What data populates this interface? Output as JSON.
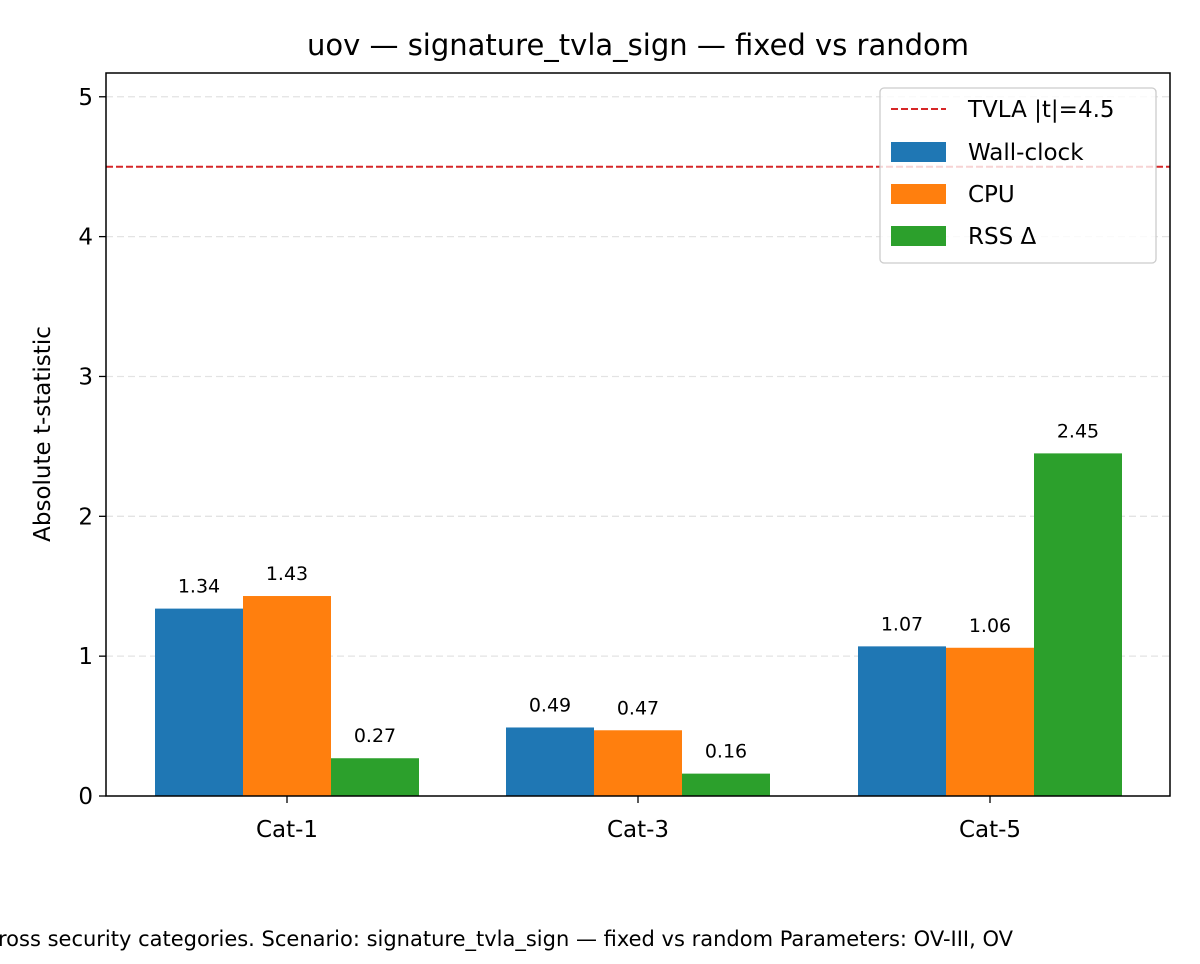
{
  "chart_data": {
    "type": "bar",
    "title": "uov — signature_tvla_sign — fixed vs random",
    "xlabel": "",
    "ylabel": "Absolute t-statistic",
    "categories": [
      "Cat-1",
      "Cat-3",
      "Cat-5"
    ],
    "series": [
      {
        "name": "Wall-clock",
        "values": [
          1.34,
          0.49,
          1.07
        ],
        "labels": [
          "1.34",
          "0.49",
          "1.07"
        ],
        "color": "#1f77b4"
      },
      {
        "name": "CPU",
        "values": [
          1.43,
          0.47,
          1.06
        ],
        "labels": [
          "1.43",
          "0.47",
          "1.06"
        ],
        "color": "#ff7f0e"
      },
      {
        "name": "RSS Δ",
        "values": [
          0.27,
          0.16,
          2.45
        ],
        "labels": [
          "0.27",
          "0.16",
          "2.45"
        ],
        "color": "#2ca02c"
      }
    ],
    "threshold": {
      "name": "TVLA |t|=4.5",
      "value": 4.5,
      "color": "#d62728",
      "style": "dashed"
    },
    "ylim": [
      0,
      5.17
    ],
    "yticks": [
      0,
      1,
      2,
      3,
      4,
      5
    ],
    "ytick_labels": [
      "0",
      "1",
      "2",
      "3",
      "4",
      "5"
    ],
    "grid": "y-dashed",
    "legend_position": "top-right",
    "caption": "ross security categories. Scenario: signature_tvla_sign — fixed vs random Parameters: OV-III, OV"
  }
}
